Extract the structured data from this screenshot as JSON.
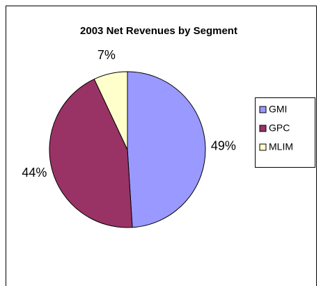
{
  "chart_data": {
    "type": "pie",
    "title": "2003 Net Revenues by Segment",
    "categories": [
      "GMI",
      "GPC",
      "MLIM"
    ],
    "values": [
      49,
      44,
      7
    ],
    "value_labels": [
      "49%",
      "44%",
      "7%"
    ],
    "colors": [
      "#9999ff",
      "#993366",
      "#ffffcc"
    ],
    "legend": "right"
  }
}
